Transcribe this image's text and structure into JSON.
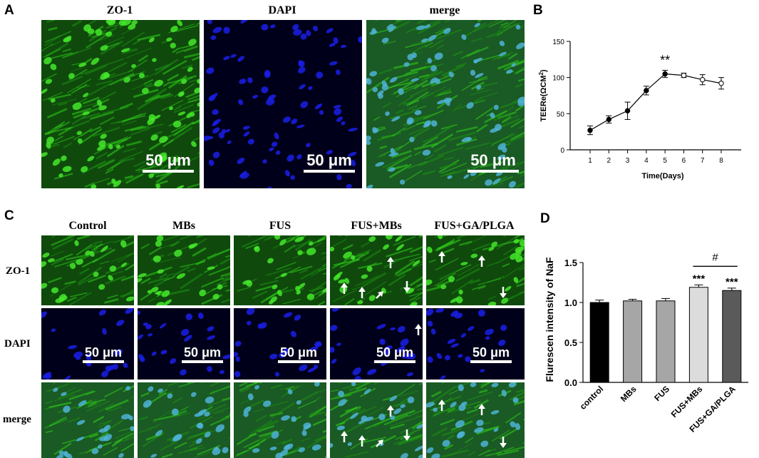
{
  "panel_labels": {
    "a": "A",
    "b": "B",
    "c": "C",
    "d": "D"
  },
  "panel_a": {
    "titles": [
      "ZO-1",
      "DAPI",
      "merge"
    ],
    "scale_bar": "50 μm"
  },
  "panel_c": {
    "column_titles": [
      "Control",
      "MBs",
      "FUS",
      "FUS+MBs",
      "FUS+GA/PLGA"
    ],
    "row_titles": [
      "ZO-1",
      "DAPI",
      "merge"
    ],
    "scale_bar": "50 μm"
  },
  "colors": {
    "zo1_green": "#27b516",
    "dapi_blue": "#1a1ee8",
    "merge_cyan": "#4fb3d6",
    "bar_fills": [
      "#000000",
      "#a6a6a6",
      "#a6a6a6",
      "#dcdcdc",
      "#5a5a5a"
    ]
  },
  "chart_data": [
    {
      "type": "line",
      "title": "",
      "xlabel": "Time(Days)",
      "ylabel": "TEERe(ΩCM²)",
      "ylabel_parts": {
        "main": "TEERe(ΩCM",
        "sup": "2",
        "close": ")"
      },
      "x": [
        1,
        2,
        3,
        4,
        5,
        6,
        7,
        8
      ],
      "x_ticks": [
        "1",
        "2",
        "3",
        "4",
        "5",
        "6",
        "7",
        "8"
      ],
      "y": [
        27,
        42,
        54,
        82,
        105,
        103,
        97,
        92
      ],
      "error": [
        6,
        5,
        12,
        6,
        5,
        3,
        7,
        8
      ],
      "ylim": [
        0,
        150
      ],
      "y_ticks": [
        0,
        50,
        100,
        150
      ],
      "y_tick_labels": [
        "0",
        "50",
        "100",
        "150"
      ],
      "grid": false,
      "annotations": [
        {
          "x": 5,
          "text": "**"
        }
      ]
    },
    {
      "type": "bar",
      "title": "",
      "xlabel": "",
      "ylabel": "Flurescen intensity of NaF",
      "categories": [
        "control",
        "MBs",
        "FUS",
        "FUS+MBs",
        "FUS+GA/PLGA"
      ],
      "values": [
        1.0,
        1.02,
        1.02,
        1.19,
        1.15
      ],
      "error": [
        0.03,
        0.02,
        0.03,
        0.03,
        0.03
      ],
      "ylim": [
        0,
        1.5
      ],
      "y_ticks": [
        0,
        0.5,
        1.0,
        1.5
      ],
      "y_tick_labels": [
        "0.0",
        "0.5",
        "1.0",
        "1.5"
      ],
      "grid": false,
      "significance": [
        "",
        "",
        "",
        "***",
        "***"
      ],
      "bracket": {
        "from": 3,
        "to": 4,
        "text": "#"
      }
    }
  ]
}
